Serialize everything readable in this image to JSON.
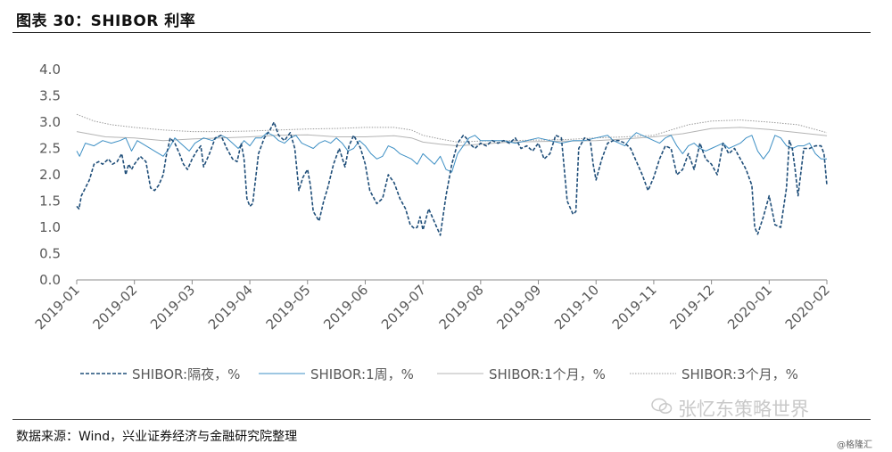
{
  "figure": {
    "title": "图表 30：SHIBOR 利率",
    "source": "数据来源：Wind，兴业证券经济与金融研究院整理",
    "watermark": "张忆东策略世界",
    "credit": "@格隆汇"
  },
  "colors": {
    "overnight": "#1f4e79",
    "week1": "#3d8fc4",
    "month1": "#b4b4b4",
    "month3": "#9a9a9a",
    "axis": "#8c8c8c",
    "text": "#595959"
  },
  "chart_data": {
    "type": "line",
    "title": "",
    "xlabel": "",
    "ylabel": "",
    "ylim": [
      0,
      4
    ],
    "yticks": [
      "0.0",
      "0.5",
      "1.0",
      "1.5",
      "2.0",
      "2.5",
      "3.0",
      "3.5",
      "4.0"
    ],
    "xlim": [
      0,
      13
    ],
    "xticks": [
      "2019-01",
      "2019-02",
      "2019-03",
      "2019-04",
      "2019-05",
      "2019-06",
      "2019-07",
      "2019-08",
      "2019-09",
      "2019-10",
      "2019-11",
      "2019-12",
      "2020-01",
      "2020-02"
    ],
    "grid": false,
    "legend_position": "bottom",
    "series": [
      {
        "name": "SHIBOR:隔夜，%",
        "style": "dashed",
        "x": [
          0.0,
          0.04,
          0.08,
          0.15,
          0.22,
          0.3,
          0.38,
          0.45,
          0.55,
          0.62,
          0.7,
          0.78,
          0.85,
          0.9,
          0.95,
          1.0,
          1.1,
          1.2,
          1.28,
          1.35,
          1.42,
          1.5,
          1.55,
          1.62,
          1.7,
          1.78,
          1.85,
          1.92,
          2.0,
          2.08,
          2.15,
          2.2,
          2.3,
          2.4,
          2.5,
          2.6,
          2.7,
          2.78,
          2.85,
          2.9,
          2.95,
          3.0,
          3.05,
          3.15,
          3.25,
          3.35,
          3.42,
          3.5,
          3.6,
          3.7,
          3.78,
          3.85,
          3.92,
          4.0,
          4.05,
          4.1,
          4.2,
          4.28,
          4.35,
          4.45,
          4.55,
          4.65,
          4.72,
          4.8,
          4.85,
          4.92,
          5.0,
          5.08,
          5.2,
          5.3,
          5.4,
          5.5,
          5.6,
          5.7,
          5.78,
          5.85,
          5.9,
          5.95,
          6.0,
          6.1,
          6.2,
          6.3,
          6.4,
          6.5,
          6.6,
          6.7,
          6.75,
          6.8,
          6.9,
          7.0,
          7.1,
          7.2,
          7.3,
          7.4,
          7.5,
          7.6,
          7.7,
          7.8,
          7.9,
          8.0,
          8.1,
          8.2,
          8.3,
          8.4,
          8.5,
          8.6,
          8.65,
          8.7,
          8.8,
          8.9,
          8.95,
          9.0,
          9.1,
          9.2,
          9.3,
          9.4,
          9.5,
          9.6,
          9.7,
          9.8,
          9.9,
          10.0,
          10.1,
          10.2,
          10.3,
          10.4,
          10.5,
          10.6,
          10.7,
          10.8,
          10.9,
          11.0,
          11.1,
          11.2,
          11.3,
          11.4,
          11.5,
          11.6,
          11.7,
          11.75,
          11.8,
          11.9,
          12.0,
          12.1,
          12.2,
          12.3,
          12.35,
          12.4,
          12.45,
          12.5,
          12.6,
          12.7,
          12.8,
          12.9,
          12.95,
          13.0
        ],
        "y": [
          1.4,
          1.35,
          1.6,
          1.75,
          1.9,
          2.2,
          2.25,
          2.2,
          2.3,
          2.2,
          2.25,
          2.4,
          2.0,
          2.2,
          2.1,
          2.2,
          2.35,
          2.25,
          1.75,
          1.7,
          1.8,
          2.0,
          2.35,
          2.7,
          2.6,
          2.4,
          2.2,
          2.1,
          2.3,
          2.45,
          2.55,
          2.15,
          2.4,
          2.7,
          2.75,
          2.5,
          2.3,
          2.25,
          2.6,
          2.3,
          1.55,
          1.4,
          1.45,
          2.4,
          2.7,
          2.85,
          3.0,
          2.75,
          2.65,
          2.8,
          2.5,
          1.7,
          1.95,
          2.1,
          1.8,
          1.3,
          1.12,
          1.5,
          1.75,
          2.2,
          2.5,
          2.15,
          2.55,
          2.75,
          2.65,
          2.5,
          2.2,
          1.7,
          1.45,
          1.55,
          2.0,
          1.85,
          1.55,
          1.35,
          1.05,
          0.98,
          1.0,
          1.2,
          0.95,
          1.35,
          1.1,
          0.85,
          1.6,
          2.2,
          2.6,
          2.75,
          2.7,
          2.6,
          2.5,
          2.6,
          2.55,
          2.65,
          2.6,
          2.65,
          2.6,
          2.7,
          2.5,
          2.55,
          2.45,
          2.6,
          2.3,
          2.4,
          2.75,
          2.7,
          1.5,
          1.25,
          1.3,
          2.5,
          2.7,
          2.65,
          2.2,
          1.9,
          2.3,
          2.6,
          2.65,
          2.65,
          2.6,
          2.5,
          2.25,
          2.0,
          1.7,
          1.95,
          2.3,
          2.55,
          2.5,
          2.0,
          2.1,
          2.4,
          2.1,
          2.6,
          2.3,
          2.2,
          2.0,
          2.6,
          2.4,
          2.5,
          2.3,
          2.1,
          1.8,
          1.0,
          0.87,
          1.2,
          1.6,
          1.05,
          1.0,
          1.75,
          2.65,
          2.5,
          2.1,
          1.6,
          2.5,
          2.5,
          2.55,
          2.55,
          2.4,
          1.8
        ],
        "color": "#1f4e79"
      },
      {
        "name": "SHIBOR:1周，%",
        "style": "solid",
        "x": [
          0.0,
          0.05,
          0.15,
          0.3,
          0.45,
          0.6,
          0.75,
          0.85,
          0.95,
          1.05,
          1.2,
          1.35,
          1.5,
          1.6,
          1.7,
          1.8,
          1.95,
          2.05,
          2.2,
          2.35,
          2.5,
          2.6,
          2.7,
          2.8,
          2.9,
          3.0,
          3.1,
          3.2,
          3.3,
          3.4,
          3.5,
          3.6,
          3.7,
          3.8,
          3.9,
          4.0,
          4.1,
          4.2,
          4.3,
          4.4,
          4.5,
          4.6,
          4.7,
          4.8,
          4.9,
          5.0,
          5.1,
          5.2,
          5.3,
          5.4,
          5.5,
          5.6,
          5.7,
          5.8,
          5.9,
          6.0,
          6.1,
          6.2,
          6.3,
          6.4,
          6.5,
          6.6,
          6.7,
          6.8,
          6.9,
          7.0,
          7.2,
          7.4,
          7.6,
          7.8,
          8.0,
          8.2,
          8.4,
          8.6,
          8.8,
          9.0,
          9.2,
          9.3,
          9.4,
          9.5,
          9.6,
          9.7,
          9.8,
          9.9,
          10.0,
          10.1,
          10.2,
          10.3,
          10.4,
          10.5,
          10.6,
          10.7,
          10.8,
          10.9,
          11.0,
          11.1,
          11.2,
          11.3,
          11.4,
          11.5,
          11.6,
          11.7,
          11.8,
          11.9,
          12.0,
          12.1,
          12.2,
          12.3,
          12.4,
          12.5,
          12.6,
          12.7,
          12.8,
          12.9,
          13.0
        ],
        "y": [
          2.45,
          2.35,
          2.6,
          2.55,
          2.65,
          2.6,
          2.65,
          2.7,
          2.45,
          2.65,
          2.55,
          2.45,
          2.35,
          2.5,
          2.7,
          2.6,
          2.45,
          2.6,
          2.7,
          2.65,
          2.75,
          2.7,
          2.6,
          2.5,
          2.65,
          2.55,
          2.7,
          2.7,
          2.8,
          2.75,
          2.65,
          2.6,
          2.7,
          2.75,
          2.6,
          2.55,
          2.5,
          2.6,
          2.65,
          2.6,
          2.7,
          2.6,
          2.45,
          2.5,
          2.65,
          2.55,
          2.4,
          2.3,
          2.35,
          2.55,
          2.5,
          2.4,
          2.35,
          2.3,
          2.2,
          2.4,
          2.3,
          2.2,
          2.35,
          2.1,
          2.05,
          2.4,
          2.55,
          2.7,
          2.75,
          2.65,
          2.65,
          2.65,
          2.6,
          2.65,
          2.7,
          2.65,
          2.6,
          2.65,
          2.65,
          2.7,
          2.75,
          2.65,
          2.6,
          2.55,
          2.7,
          2.8,
          2.75,
          2.7,
          2.65,
          2.6,
          2.7,
          2.75,
          2.55,
          2.4,
          2.55,
          2.6,
          2.5,
          2.45,
          2.5,
          2.55,
          2.6,
          2.5,
          2.55,
          2.6,
          2.7,
          2.75,
          2.45,
          2.3,
          2.45,
          2.75,
          2.7,
          2.55,
          2.5,
          2.55,
          2.55,
          2.6,
          2.4,
          2.3,
          2.3
        ],
        "color": "#3d8fc4"
      },
      {
        "name": "SHIBOR:1个月，%",
        "style": "solid",
        "x": [
          0.0,
          0.5,
          1.0,
          1.5,
          2.0,
          2.5,
          3.0,
          3.5,
          4.0,
          4.5,
          5.0,
          5.5,
          5.8,
          6.0,
          6.3,
          6.6,
          7.0,
          7.5,
          8.0,
          8.5,
          9.0,
          9.5,
          10.0,
          10.5,
          11.0,
          11.5,
          12.0,
          12.5,
          13.0
        ],
        "y": [
          2.82,
          2.72,
          2.7,
          2.65,
          2.68,
          2.7,
          2.72,
          2.75,
          2.76,
          2.72,
          2.72,
          2.74,
          2.7,
          2.62,
          2.58,
          2.55,
          2.58,
          2.62,
          2.63,
          2.64,
          2.65,
          2.68,
          2.72,
          2.78,
          2.88,
          2.9,
          2.86,
          2.8,
          2.74
        ],
        "color": "#b4b4b4"
      },
      {
        "name": "SHIBOR:3个月，%",
        "style": "dotted",
        "x": [
          0.0,
          0.3,
          0.6,
          1.0,
          1.5,
          2.0,
          2.5,
          3.0,
          3.5,
          4.0,
          4.5,
          5.0,
          5.5,
          5.8,
          6.0,
          6.3,
          6.6,
          7.0,
          7.5,
          8.0,
          8.5,
          9.0,
          9.5,
          10.0,
          10.3,
          10.6,
          11.0,
          11.5,
          12.0,
          12.5,
          13.0
        ],
        "y": [
          3.15,
          3.02,
          2.95,
          2.9,
          2.85,
          2.82,
          2.82,
          2.83,
          2.85,
          2.87,
          2.88,
          2.9,
          2.9,
          2.85,
          2.75,
          2.68,
          2.62,
          2.64,
          2.65,
          2.66,
          2.67,
          2.7,
          2.72,
          2.75,
          2.85,
          2.95,
          3.02,
          3.04,
          3.0,
          2.95,
          2.8
        ],
        "color": "#9a9a9a"
      }
    ]
  }
}
